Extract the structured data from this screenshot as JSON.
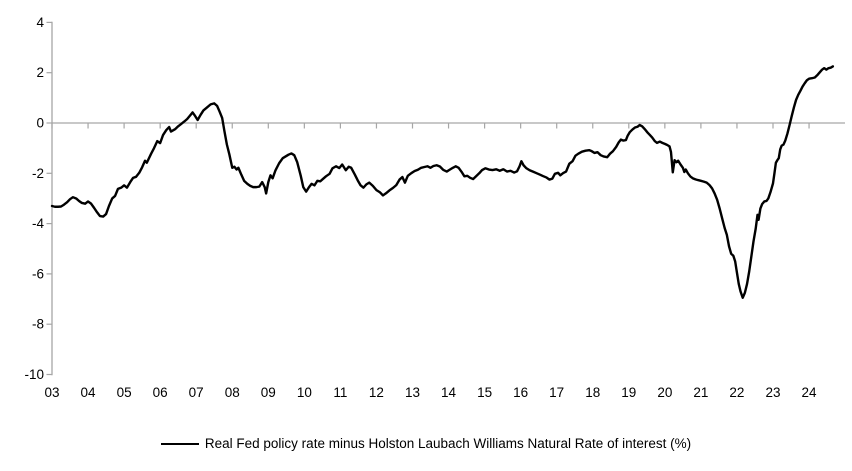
{
  "chart_data": {
    "type": "line",
    "title": "",
    "legend_position": "bottom",
    "grid": "zero-line-only",
    "colors": {
      "axis": "#a6a6a6",
      "zero_line": "#a6a6a6",
      "line": "#000000",
      "background": "#ffffff",
      "tick_text": "#000000"
    },
    "xlim": [
      2003,
      2024.75
    ],
    "ylim": [
      -10,
      4
    ],
    "y_ticks": [
      4,
      2,
      0,
      -2,
      -4,
      -6,
      -8,
      -10
    ],
    "x_tick_start_year": 2003,
    "x_tick_labels": [
      "03",
      "04",
      "05",
      "06",
      "07",
      "08",
      "09",
      "10",
      "11",
      "12",
      "13",
      "14",
      "15",
      "16",
      "17",
      "18",
      "19",
      "20",
      "21",
      "22",
      "23",
      "24"
    ],
    "series": [
      {
        "name": "Real Fed policy rate minus Holston Laubach Williams Natural Rate of interest (%)",
        "color": "#000000",
        "points": [
          [
            2003.0,
            -3.3
          ],
          [
            2003.08,
            -3.33
          ],
          [
            2003.17,
            -3.33
          ],
          [
            2003.25,
            -3.32
          ],
          [
            2003.33,
            -3.25
          ],
          [
            2003.42,
            -3.15
          ],
          [
            2003.5,
            -3.03
          ],
          [
            2003.58,
            -2.95
          ],
          [
            2003.67,
            -3.0
          ],
          [
            2003.75,
            -3.1
          ],
          [
            2003.83,
            -3.18
          ],
          [
            2003.92,
            -3.21
          ],
          [
            2004.0,
            -3.12
          ],
          [
            2004.08,
            -3.2
          ],
          [
            2004.17,
            -3.38
          ],
          [
            2004.25,
            -3.55
          ],
          [
            2004.33,
            -3.7
          ],
          [
            2004.42,
            -3.72
          ],
          [
            2004.5,
            -3.62
          ],
          [
            2004.58,
            -3.3
          ],
          [
            2004.67,
            -3.0
          ],
          [
            2004.75,
            -2.9
          ],
          [
            2004.83,
            -2.62
          ],
          [
            2004.92,
            -2.57
          ],
          [
            2005.0,
            -2.48
          ],
          [
            2005.08,
            -2.57
          ],
          [
            2005.17,
            -2.35
          ],
          [
            2005.25,
            -2.18
          ],
          [
            2005.33,
            -2.14
          ],
          [
            2005.42,
            -1.98
          ],
          [
            2005.5,
            -1.76
          ],
          [
            2005.58,
            -1.5
          ],
          [
            2005.63,
            -1.58
          ],
          [
            2005.75,
            -1.22
          ],
          [
            2005.83,
            -1.0
          ],
          [
            2005.92,
            -0.72
          ],
          [
            2006.0,
            -0.8
          ],
          [
            2006.08,
            -0.48
          ],
          [
            2006.17,
            -0.28
          ],
          [
            2006.25,
            -0.16
          ],
          [
            2006.3,
            -0.34
          ],
          [
            2006.42,
            -0.24
          ],
          [
            2006.5,
            -0.13
          ],
          [
            2006.58,
            -0.04
          ],
          [
            2006.67,
            0.06
          ],
          [
            2006.75,
            0.16
          ],
          [
            2006.83,
            0.3
          ],
          [
            2006.9,
            0.42
          ],
          [
            2006.97,
            0.28
          ],
          [
            2007.04,
            0.12
          ],
          [
            2007.12,
            0.32
          ],
          [
            2007.2,
            0.5
          ],
          [
            2007.3,
            0.62
          ],
          [
            2007.4,
            0.74
          ],
          [
            2007.5,
            0.78
          ],
          [
            2007.58,
            0.68
          ],
          [
            2007.65,
            0.45
          ],
          [
            2007.72,
            0.2
          ],
          [
            2007.78,
            -0.3
          ],
          [
            2007.85,
            -0.85
          ],
          [
            2007.92,
            -1.25
          ],
          [
            2008.0,
            -1.78
          ],
          [
            2008.06,
            -1.74
          ],
          [
            2008.12,
            -1.85
          ],
          [
            2008.17,
            -1.78
          ],
          [
            2008.25,
            -2.05
          ],
          [
            2008.33,
            -2.3
          ],
          [
            2008.42,
            -2.42
          ],
          [
            2008.5,
            -2.5
          ],
          [
            2008.58,
            -2.55
          ],
          [
            2008.67,
            -2.55
          ],
          [
            2008.75,
            -2.53
          ],
          [
            2008.83,
            -2.35
          ],
          [
            2008.9,
            -2.55
          ],
          [
            2008.94,
            -2.8
          ],
          [
            2009.0,
            -2.35
          ],
          [
            2009.06,
            -2.08
          ],
          [
            2009.12,
            -2.2
          ],
          [
            2009.2,
            -1.88
          ],
          [
            2009.3,
            -1.6
          ],
          [
            2009.4,
            -1.4
          ],
          [
            2009.48,
            -1.33
          ],
          [
            2009.56,
            -1.26
          ],
          [
            2009.64,
            -1.21
          ],
          [
            2009.72,
            -1.28
          ],
          [
            2009.8,
            -1.55
          ],
          [
            2009.9,
            -2.1
          ],
          [
            2009.97,
            -2.55
          ],
          [
            2010.05,
            -2.73
          ],
          [
            2010.13,
            -2.55
          ],
          [
            2010.2,
            -2.42
          ],
          [
            2010.28,
            -2.48
          ],
          [
            2010.36,
            -2.3
          ],
          [
            2010.44,
            -2.32
          ],
          [
            2010.52,
            -2.22
          ],
          [
            2010.6,
            -2.12
          ],
          [
            2010.7,
            -2.02
          ],
          [
            2010.78,
            -1.8
          ],
          [
            2010.88,
            -1.72
          ],
          [
            2010.97,
            -1.79
          ],
          [
            2011.05,
            -1.65
          ],
          [
            2011.15,
            -1.88
          ],
          [
            2011.23,
            -1.74
          ],
          [
            2011.3,
            -1.78
          ],
          [
            2011.4,
            -2.05
          ],
          [
            2011.48,
            -2.28
          ],
          [
            2011.56,
            -2.48
          ],
          [
            2011.64,
            -2.57
          ],
          [
            2011.72,
            -2.44
          ],
          [
            2011.8,
            -2.37
          ],
          [
            2011.9,
            -2.5
          ],
          [
            2012.0,
            -2.67
          ],
          [
            2012.1,
            -2.76
          ],
          [
            2012.18,
            -2.88
          ],
          [
            2012.26,
            -2.8
          ],
          [
            2012.36,
            -2.68
          ],
          [
            2012.46,
            -2.58
          ],
          [
            2012.55,
            -2.47
          ],
          [
            2012.64,
            -2.25
          ],
          [
            2012.72,
            -2.15
          ],
          [
            2012.79,
            -2.37
          ],
          [
            2012.87,
            -2.1
          ],
          [
            2012.97,
            -1.99
          ],
          [
            2013.06,
            -1.91
          ],
          [
            2013.15,
            -1.86
          ],
          [
            2013.24,
            -1.78
          ],
          [
            2013.33,
            -1.75
          ],
          [
            2013.42,
            -1.72
          ],
          [
            2013.5,
            -1.78
          ],
          [
            2013.58,
            -1.71
          ],
          [
            2013.67,
            -1.68
          ],
          [
            2013.76,
            -1.73
          ],
          [
            2013.85,
            -1.86
          ],
          [
            2013.95,
            -1.93
          ],
          [
            2014.03,
            -1.86
          ],
          [
            2014.12,
            -1.78
          ],
          [
            2014.2,
            -1.72
          ],
          [
            2014.28,
            -1.78
          ],
          [
            2014.36,
            -1.94
          ],
          [
            2014.44,
            -2.12
          ],
          [
            2014.52,
            -2.1
          ],
          [
            2014.6,
            -2.18
          ],
          [
            2014.68,
            -2.23
          ],
          [
            2014.76,
            -2.12
          ],
          [
            2014.85,
            -2.0
          ],
          [
            2014.93,
            -1.87
          ],
          [
            2015.02,
            -1.8
          ],
          [
            2015.12,
            -1.85
          ],
          [
            2015.22,
            -1.87
          ],
          [
            2015.32,
            -1.84
          ],
          [
            2015.42,
            -1.9
          ],
          [
            2015.52,
            -1.84
          ],
          [
            2015.62,
            -1.93
          ],
          [
            2015.72,
            -1.9
          ],
          [
            2015.82,
            -1.97
          ],
          [
            2015.9,
            -1.92
          ],
          [
            2015.97,
            -1.72
          ],
          [
            2016.02,
            -1.52
          ],
          [
            2016.08,
            -1.68
          ],
          [
            2016.16,
            -1.8
          ],
          [
            2016.25,
            -1.88
          ],
          [
            2016.35,
            -1.94
          ],
          [
            2016.45,
            -2.0
          ],
          [
            2016.53,
            -2.05
          ],
          [
            2016.62,
            -2.11
          ],
          [
            2016.72,
            -2.17
          ],
          [
            2016.8,
            -2.25
          ],
          [
            2016.88,
            -2.21
          ],
          [
            2016.95,
            -2.02
          ],
          [
            2017.04,
            -1.98
          ],
          [
            2017.1,
            -2.08
          ],
          [
            2017.18,
            -1.99
          ],
          [
            2017.26,
            -1.93
          ],
          [
            2017.35,
            -1.62
          ],
          [
            2017.44,
            -1.52
          ],
          [
            2017.52,
            -1.3
          ],
          [
            2017.6,
            -1.22
          ],
          [
            2017.7,
            -1.14
          ],
          [
            2017.8,
            -1.1
          ],
          [
            2017.9,
            -1.08
          ],
          [
            2017.97,
            -1.12
          ],
          [
            2018.05,
            -1.19
          ],
          [
            2018.13,
            -1.16
          ],
          [
            2018.22,
            -1.28
          ],
          [
            2018.3,
            -1.33
          ],
          [
            2018.4,
            -1.36
          ],
          [
            2018.48,
            -1.22
          ],
          [
            2018.56,
            -1.12
          ],
          [
            2018.65,
            -0.95
          ],
          [
            2018.72,
            -0.77
          ],
          [
            2018.78,
            -0.66
          ],
          [
            2018.85,
            -0.7
          ],
          [
            2018.92,
            -0.68
          ],
          [
            2018.97,
            -0.5
          ],
          [
            2019.03,
            -0.36
          ],
          [
            2019.1,
            -0.26
          ],
          [
            2019.17,
            -0.18
          ],
          [
            2019.24,
            -0.15
          ],
          [
            2019.3,
            -0.08
          ],
          [
            2019.37,
            -0.13
          ],
          [
            2019.44,
            -0.24
          ],
          [
            2019.52,
            -0.38
          ],
          [
            2019.58,
            -0.47
          ],
          [
            2019.65,
            -0.58
          ],
          [
            2019.72,
            -0.72
          ],
          [
            2019.78,
            -0.79
          ],
          [
            2019.86,
            -0.74
          ],
          [
            2019.93,
            -0.79
          ],
          [
            2020.0,
            -0.83
          ],
          [
            2020.06,
            -0.87
          ],
          [
            2020.13,
            -0.93
          ],
          [
            2020.17,
            -1.15
          ],
          [
            2020.22,
            -1.96
          ],
          [
            2020.27,
            -1.48
          ],
          [
            2020.32,
            -1.56
          ],
          [
            2020.37,
            -1.5
          ],
          [
            2020.44,
            -1.66
          ],
          [
            2020.5,
            -1.78
          ],
          [
            2020.54,
            -1.95
          ],
          [
            2020.58,
            -1.85
          ],
          [
            2020.64,
            -2.0
          ],
          [
            2020.71,
            -2.13
          ],
          [
            2020.78,
            -2.2
          ],
          [
            2020.85,
            -2.24
          ],
          [
            2020.92,
            -2.27
          ],
          [
            2021.0,
            -2.3
          ],
          [
            2021.08,
            -2.33
          ],
          [
            2021.16,
            -2.37
          ],
          [
            2021.24,
            -2.47
          ],
          [
            2021.31,
            -2.6
          ],
          [
            2021.38,
            -2.8
          ],
          [
            2021.45,
            -3.05
          ],
          [
            2021.52,
            -3.4
          ],
          [
            2021.6,
            -3.85
          ],
          [
            2021.66,
            -4.18
          ],
          [
            2021.72,
            -4.45
          ],
          [
            2021.78,
            -4.9
          ],
          [
            2021.84,
            -5.2
          ],
          [
            2021.9,
            -5.28
          ],
          [
            2021.95,
            -5.5
          ],
          [
            2022.0,
            -5.95
          ],
          [
            2022.05,
            -6.4
          ],
          [
            2022.1,
            -6.7
          ],
          [
            2022.16,
            -6.95
          ],
          [
            2022.22,
            -6.75
          ],
          [
            2022.28,
            -6.4
          ],
          [
            2022.34,
            -5.9
          ],
          [
            2022.4,
            -5.3
          ],
          [
            2022.46,
            -4.7
          ],
          [
            2022.52,
            -4.2
          ],
          [
            2022.57,
            -3.65
          ],
          [
            2022.6,
            -3.85
          ],
          [
            2022.65,
            -3.4
          ],
          [
            2022.7,
            -3.22
          ],
          [
            2022.76,
            -3.12
          ],
          [
            2022.82,
            -3.1
          ],
          [
            2022.87,
            -3.0
          ],
          [
            2022.93,
            -2.75
          ],
          [
            2023.0,
            -2.4
          ],
          [
            2023.04,
            -2.0
          ],
          [
            2023.08,
            -1.58
          ],
          [
            2023.12,
            -1.48
          ],
          [
            2023.16,
            -1.4
          ],
          [
            2023.2,
            -1.05
          ],
          [
            2023.24,
            -0.9
          ],
          [
            2023.29,
            -0.86
          ],
          [
            2023.34,
            -0.7
          ],
          [
            2023.4,
            -0.42
          ],
          [
            2023.46,
            -0.08
          ],
          [
            2023.52,
            0.28
          ],
          [
            2023.58,
            0.62
          ],
          [
            2023.64,
            0.92
          ],
          [
            2023.7,
            1.12
          ],
          [
            2023.76,
            1.28
          ],
          [
            2023.82,
            1.45
          ],
          [
            2023.88,
            1.58
          ],
          [
            2023.94,
            1.7
          ],
          [
            2024.0,
            1.76
          ],
          [
            2024.08,
            1.78
          ],
          [
            2024.16,
            1.81
          ],
          [
            2024.24,
            1.92
          ],
          [
            2024.3,
            2.02
          ],
          [
            2024.36,
            2.12
          ],
          [
            2024.42,
            2.18
          ],
          [
            2024.48,
            2.12
          ],
          [
            2024.54,
            2.18
          ],
          [
            2024.6,
            2.2
          ],
          [
            2024.66,
            2.25
          ]
        ]
      }
    ]
  }
}
